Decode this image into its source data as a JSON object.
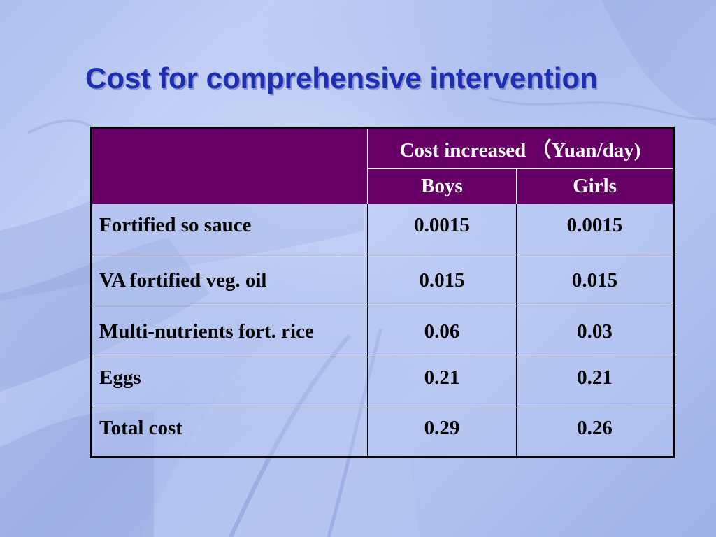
{
  "slide": {
    "title": "Cost for comprehensive intervention"
  },
  "table": {
    "group_header": "Cost increased （Yuan/day)",
    "columns": [
      "Boys",
      "Girls"
    ],
    "rows": [
      {
        "label": "Fortified so sauce",
        "boys": "0.0015",
        "girls": "0.0015"
      },
      {
        "label": "VA fortified veg. oil",
        "boys": "0.015",
        "girls": "0.015"
      },
      {
        "label": "Multi-nutrients fort. rice",
        "boys": "0.06",
        "girls": "0.03"
      },
      {
        "label": "Eggs",
        "boys": "0.21",
        "girls": "0.21"
      },
      {
        "label": "Total cost",
        "boys": "0.29",
        "girls": "0.26"
      }
    ]
  },
  "colors": {
    "title": "#1d2fb0",
    "header_bg": "#660066",
    "header_text": "#ffffff"
  }
}
